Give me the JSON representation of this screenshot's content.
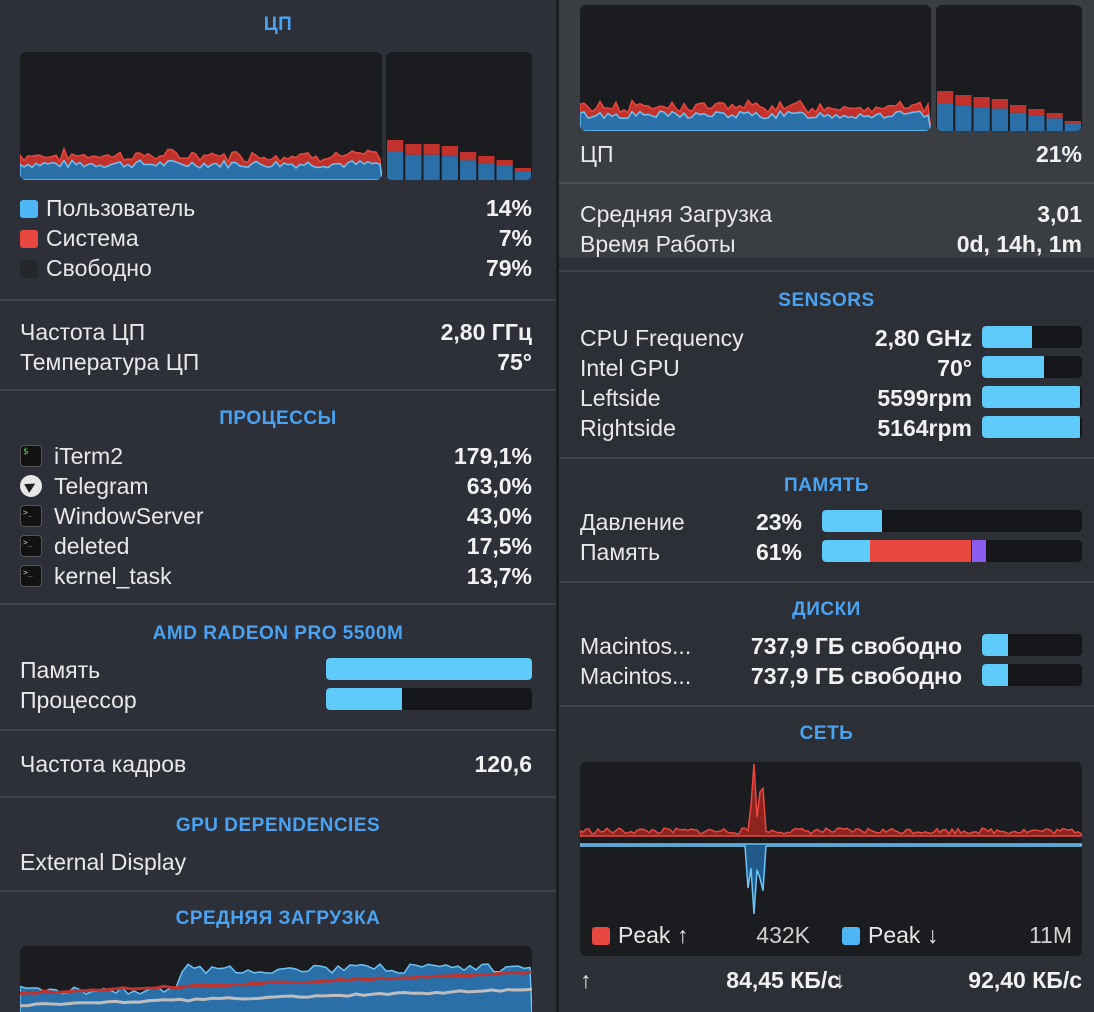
{
  "colors": {
    "user": "#4fb6f5",
    "system": "#e8483f",
    "idle": "#2b2d31",
    "accent": "#4aa3f2",
    "bar": "#5ecbfa",
    "purple": "#8a5cf0"
  },
  "left": {
    "cpu": {
      "title": "ЦП",
      "legend": [
        {
          "label": "Пользователь",
          "value": "14%",
          "color": "#4fb6f5"
        },
        {
          "label": "Система",
          "value": "7%",
          "color": "#e8483f"
        },
        {
          "label": "Свободно",
          "value": "79%",
          "color": "#2b2d31"
        }
      ],
      "freq_label": "Частота ЦП",
      "freq_value": "2,80 ГГц",
      "temp_label": "Температура ЦП",
      "temp_value": "75°"
    },
    "processes": {
      "title": "ПРОЦЕССЫ",
      "items": [
        {
          "name": "iTerm2",
          "value": "179,1%",
          "icon": "terminal-icon"
        },
        {
          "name": "Telegram",
          "value": "63,0%",
          "icon": "telegram-icon"
        },
        {
          "name": "WindowServer",
          "value": "43,0%",
          "icon": "process-icon"
        },
        {
          "name": "deleted",
          "value": "17,5%",
          "icon": "process-icon"
        },
        {
          "name": "kernel_task",
          "value": "13,7%",
          "icon": "process-icon"
        }
      ]
    },
    "gpu": {
      "title": "AMD RADEON PRO 5500M",
      "memory_label": "Память",
      "memory_level": 1.0,
      "processor_label": "Процессор",
      "processor_level": 0.37,
      "fps_label": "Частота кадров",
      "fps_value": "120,6"
    },
    "gpu_deps": {
      "title": "GPU DEPENDENCIES",
      "item": "External Display"
    },
    "load": {
      "title": "СРЕДНЯЯ ЗАГРУЗКА"
    }
  },
  "right": {
    "cpu_label": "ЦП",
    "cpu_value": "21%",
    "load_label": "Средняя Загрузка",
    "load_value": "3,01",
    "uptime_label": "Время Работы",
    "uptime_value": "0d, 14h, 1m",
    "sensors": {
      "title": "SENSORS",
      "items": [
        {
          "label": "CPU Frequency",
          "value": "2,80 GHz",
          "level": 0.5
        },
        {
          "label": "Intel GPU",
          "value": "70°",
          "level": 0.62
        },
        {
          "label": "Leftside",
          "value": "5599rpm",
          "level": 0.98
        },
        {
          "label": "Rightside",
          "value": "5164rpm",
          "level": 0.98
        }
      ]
    },
    "memory": {
      "title": "ПАМЯТЬ",
      "pressure_label": "Давление",
      "pressure_value": "23%",
      "pressure_level": 0.23,
      "mem_label": "Память",
      "mem_value": "61%",
      "mem_segments": {
        "app": 0.185,
        "wired": 0.39,
        "compressed": 0.055
      }
    },
    "disks": {
      "title": "ДИСКИ",
      "items": [
        {
          "name": "Macintos...",
          "free": "737,9 ГБ свободно",
          "level": 0.26
        },
        {
          "name": "Macintos...",
          "free": "737,9 ГБ свободно",
          "level": 0.26
        }
      ]
    },
    "network": {
      "title": "СЕТЬ",
      "peak_up_label": "Peak ↑",
      "peak_up_value": "432K",
      "peak_down_label": "Peak ↓",
      "peak_down_value": "11M",
      "up_arrow": "↑",
      "up_speed": "84,45 КБ/с",
      "down_arrow": "↓",
      "down_speed": "92,40 КБ/с"
    }
  }
}
